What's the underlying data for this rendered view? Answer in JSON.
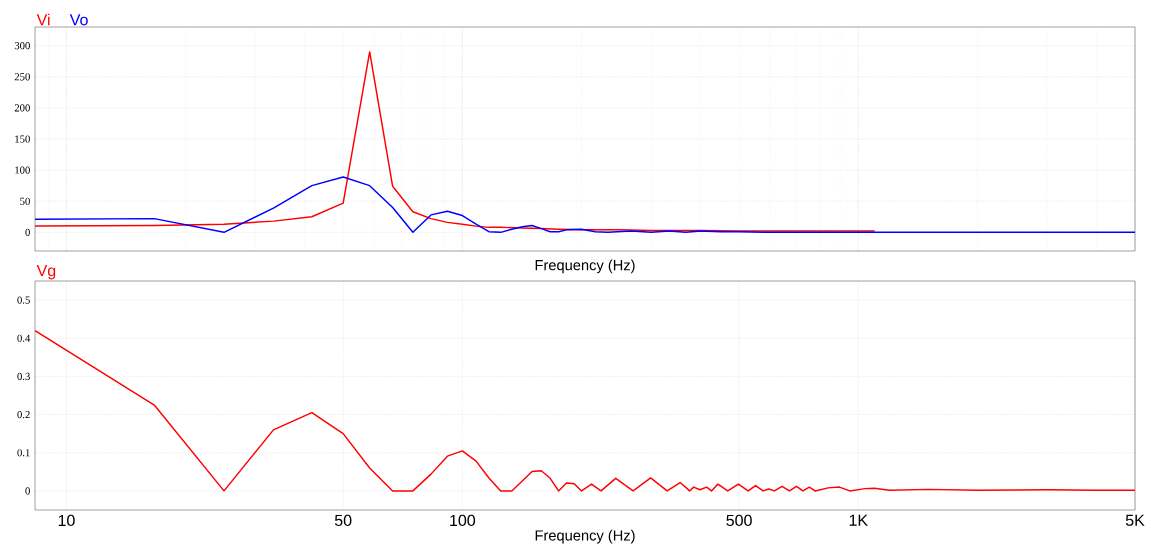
{
  "chart_data": [
    {
      "type": "line",
      "xlabel": "Frequency (Hz)",
      "log": "x",
      "grid": true,
      "tick_labels": "y",
      "xlim": [
        8.33,
        5000
      ],
      "ylim": [
        -30,
        330
      ],
      "yticks": [
        0,
        50,
        100,
        150,
        200,
        250,
        300
      ],
      "series": [
        {
          "name": "Vi",
          "color": "#ff0000",
          "x": [
            8.33,
            16.67,
            25,
            33.33,
            41.67,
            50,
            58.33,
            66.67,
            75,
            83.33,
            91.67,
            100,
            108.3,
            116.7,
            125,
            141.7,
            158.3,
            175,
            200,
            250,
            300,
            400,
            500,
            700,
            1000,
            1100
          ],
          "values": [
            10,
            11,
            13,
            18,
            25,
            47,
            290,
            74,
            33,
            22,
            16,
            13,
            10,
            8,
            8,
            7,
            6,
            5,
            4,
            4,
            3,
            3,
            2,
            2,
            2,
            2
          ]
        },
        {
          "name": "Vo",
          "color": "#0000ff",
          "x": [
            8.33,
            16.67,
            25,
            33.33,
            41.67,
            50,
            58.33,
            66.67,
            75,
            83.33,
            91.67,
            100,
            108.3,
            116.7,
            125,
            133.3,
            141.7,
            150,
            158.3,
            166.7,
            175,
            183.3,
            200,
            216.7,
            233.3,
            266.7,
            300,
            333.3,
            366.7,
            400,
            450,
            500,
            600,
            800,
            1000,
            2000,
            5000
          ],
          "values": [
            21,
            22,
            0,
            39,
            75,
            89,
            75,
            40,
            0,
            28,
            34,
            27,
            13,
            1,
            0,
            5,
            9,
            11,
            6,
            1,
            1,
            4,
            5,
            1,
            0,
            2,
            0,
            2,
            0,
            2,
            1,
            1,
            0,
            0,
            0,
            0,
            0
          ]
        }
      ]
    },
    {
      "type": "line",
      "xlabel": "Frequency (Hz)",
      "log": "x",
      "grid": true,
      "xlim": [
        8.33,
        5000
      ],
      "xticks": [
        10,
        50,
        100,
        500,
        {
          "value": 1000,
          "label": "1K"
        },
        {
          "value": 5000,
          "label": "5K"
        }
      ],
      "ylim": [
        -0.05,
        0.55
      ],
      "yticks": [
        0,
        0.1,
        0.2,
        0.3,
        0.4,
        0.5
      ],
      "series": [
        {
          "name": "Vg",
          "color": "#ff0000",
          "x": [
            8.33,
            16.67,
            25,
            33.33,
            41.67,
            50,
            58.33,
            66.67,
            75,
            83.33,
            91.67,
            100,
            108.3,
            116.7,
            125,
            133.3,
            141.7,
            150,
            158.3,
            166.7,
            175,
            183.3,
            191.7,
            200,
            212,
            224,
            244,
            270,
            299,
            329,
            355,
            375,
            384,
            398,
            414,
            426,
            442,
            468,
            498,
            527,
            550,
            575,
            594,
            614,
            642,
            670,
            698,
            725,
            752,
            778,
            839,
            896,
            952,
            1040,
            1097,
            1200,
            1500,
            2000,
            3000,
            4000,
            5000
          ],
          "values": [
            0.42,
            0.225,
            0,
            0.16,
            0.205,
            0.15,
            0.06,
            0,
            0,
            0.044,
            0.091,
            0.105,
            0.078,
            0.034,
            0,
            0,
            0.026,
            0.051,
            0.053,
            0.033,
            0,
            0.021,
            0.019,
            0,
            0.018,
            0,
            0.033,
            0,
            0.034,
            0,
            0.022,
            0,
            0.01,
            0.003,
            0.01,
            0,
            0.018,
            0,
            0.018,
            0,
            0.014,
            0,
            0.005,
            0,
            0.012,
            0,
            0.012,
            0,
            0.01,
            0,
            0.008,
            0.01,
            0,
            0.006,
            0.007,
            0.002,
            0.004,
            0.002,
            0.003,
            0.002,
            0.002
          ]
        }
      ]
    }
  ]
}
